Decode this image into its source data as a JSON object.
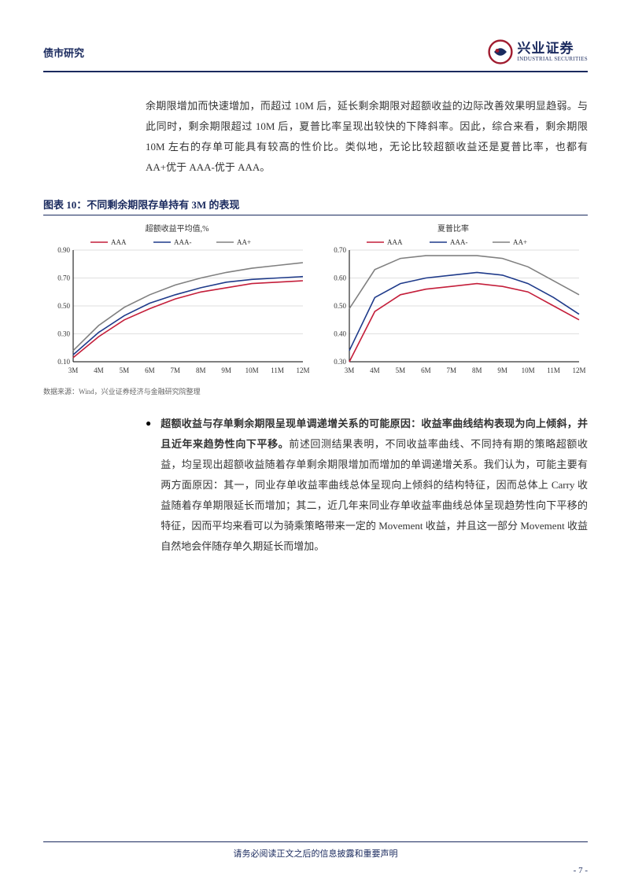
{
  "header": {
    "category": "债市研究",
    "company_cn": "兴业证券",
    "company_en": "INDUSTRIAL SECURITIES",
    "logo_red": "#a01b2e",
    "logo_blue": "#1a2a5e"
  },
  "paragraph1": "余期限增加而快速增加，而超过 10M 后，延长剩余期限对超额收益的边际改善效果明显趋弱。与此同时，剩余期限超过 10M 后，夏普比率呈现出较快的下降斜率。因此，综合来看，剩余期限 10M 左右的存单可能具有较高的性价比。类似地，无论比较超额收益还是夏普比率，也都有 AA+优于 AAA-优于 AAA。",
  "chart_title": "图表 10：不同剩余期限存单持有 3M 的表现",
  "chart_left": {
    "title": "超额收益平均值,%",
    "legend": [
      "AAA",
      "AAA-",
      "AA+"
    ],
    "colors": [
      "#c41e3a",
      "#1e3a8a",
      "#808080"
    ],
    "x_labels": [
      "3M",
      "4M",
      "5M",
      "6M",
      "7M",
      "8M",
      "9M",
      "10M",
      "11M",
      "12M"
    ],
    "ylim": [
      0.1,
      0.9
    ],
    "yticks": [
      0.1,
      0.3,
      0.5,
      0.7,
      0.9
    ],
    "series": {
      "AAA": [
        0.13,
        0.28,
        0.4,
        0.48,
        0.55,
        0.6,
        0.63,
        0.66,
        0.67,
        0.68
      ],
      "AAA-": [
        0.15,
        0.31,
        0.43,
        0.52,
        0.58,
        0.63,
        0.67,
        0.69,
        0.7,
        0.71
      ],
      "AA+": [
        0.18,
        0.36,
        0.49,
        0.58,
        0.65,
        0.7,
        0.74,
        0.77,
        0.79,
        0.81
      ]
    },
    "grid_color": "#bfbfbf",
    "axis_color": "#000000",
    "title_fontsize": 10,
    "tick_fontsize": 9,
    "line_width": 1.6
  },
  "chart_right": {
    "title": "夏普比率",
    "legend": [
      "AAA",
      "AAA-",
      "AA+"
    ],
    "colors": [
      "#c41e3a",
      "#1e3a8a",
      "#808080"
    ],
    "x_labels": [
      "3M",
      "4M",
      "5M",
      "6M",
      "7M",
      "8M",
      "9M",
      "10M",
      "11M",
      "12M"
    ],
    "ylim": [
      0.3,
      0.7
    ],
    "yticks": [
      0.3,
      0.4,
      0.5,
      0.6,
      0.7
    ],
    "series": {
      "AAA": [
        0.3,
        0.48,
        0.54,
        0.56,
        0.57,
        0.58,
        0.57,
        0.55,
        0.5,
        0.45
      ],
      "AAA-": [
        0.34,
        0.53,
        0.58,
        0.6,
        0.61,
        0.62,
        0.61,
        0.58,
        0.53,
        0.47
      ],
      "AA+": [
        0.49,
        0.63,
        0.67,
        0.68,
        0.68,
        0.68,
        0.67,
        0.64,
        0.59,
        0.54
      ]
    },
    "grid_color": "#bfbfbf",
    "axis_color": "#000000",
    "title_fontsize": 10,
    "tick_fontsize": 9,
    "line_width": 1.6
  },
  "chart_source": "数据来源：Wind，兴业证券经济与金融研究院整理",
  "bullet": {
    "bold": "超额收益与存单剩余期限呈现单调递增关系的可能原因：收益率曲线结构表现为向上倾斜，并且近年来趋势性向下平移。",
    "rest": "前述回测结果表明，不同收益率曲线、不同持有期的策略超额收益，均呈现出超额收益随着存单剩余期限增加而增加的单调递增关系。我们认为，可能主要有两方面原因：其一，同业存单收益率曲线总体呈现向上倾斜的结构特征，因而总体上 Carry 收益随着存单期限延长而增加；其二，近几年来同业存单收益率曲线总体呈现趋势性向下平移的特征，因而平均来看可以为骑乘策略带来一定的 Movement 收益，并且这一部分 Movement 收益自然地会伴随存单久期延长而增加。"
  },
  "footer": {
    "disclaimer": "请务必阅读正文之后的信息披露和重要声明",
    "page": "- 7 -"
  }
}
